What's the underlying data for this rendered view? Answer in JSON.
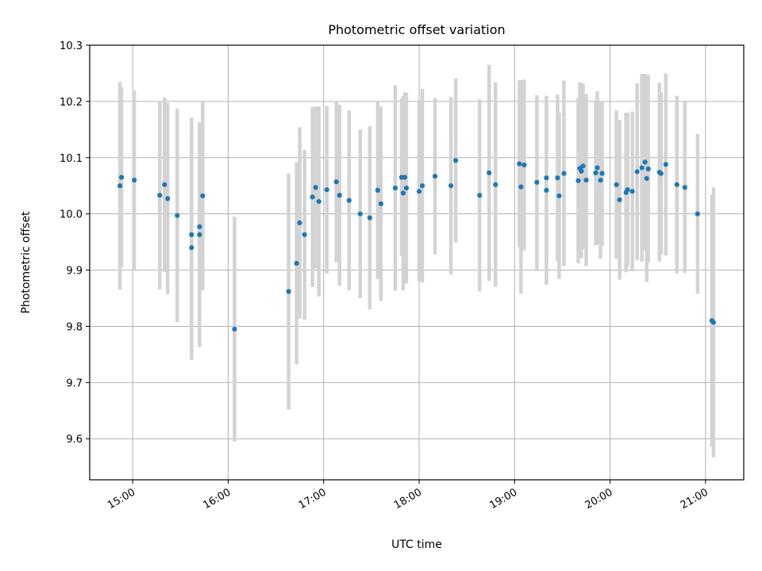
{
  "chart_data": {
    "type": "scatter",
    "title": "Photometric offset variation",
    "xlabel": "UTC time",
    "ylabel": "Photometric offset",
    "x_ticks": [
      "15:00",
      "16:00",
      "17:00",
      "18:00",
      "19:00",
      "20:00",
      "21:00"
    ],
    "y_ticks": [
      "9.6",
      "9.7",
      "9.8",
      "9.9",
      "10.0",
      "10.1",
      "10.2",
      "10.3"
    ],
    "xlim": [
      "14:33",
      "21:24"
    ],
    "ylim": [
      9.527,
      10.3
    ],
    "grid": true,
    "colors": {
      "points": "#1f77b4",
      "errorbars": "#d3d3d3",
      "grid": "#b0b0b0"
    },
    "series": [
      {
        "x": [
          "14:52",
          "14:53",
          "15:01",
          "15:17",
          "15:20",
          "15:22",
          "15:28",
          "15:37",
          "15:37",
          "15:42",
          "15:42",
          "15:44",
          "16:04",
          "16:38",
          "16:43",
          "16:45",
          "16:48",
          "16:53",
          "16:55",
          "16:57",
          "17:02",
          "17:08",
          "17:10",
          "17:16",
          "17:23",
          "17:29",
          "17:34",
          "17:36",
          "17:45",
          "17:49",
          "17:50",
          "17:51",
          "17:52",
          "18:00",
          "18:02",
          "18:10",
          "18:20",
          "18:23",
          "18:38",
          "18:44",
          "18:48",
          "19:03",
          "19:04",
          "19:06",
          "19:14",
          "19:20",
          "19:20",
          "19:27",
          "19:28",
          "19:31",
          "19:40",
          "19:41",
          "19:42",
          "19:43",
          "19:45",
          "19:51",
          "19:52",
          "19:54",
          "19:55",
          "20:04",
          "20:06",
          "20:10",
          "20:11",
          "20:14",
          "20:17",
          "20:20",
          "20:22",
          "20:23",
          "20:24",
          "20:31",
          "20:32",
          "20:35",
          "20:42",
          "20:47",
          "20:55",
          "21:04",
          "21:05"
        ],
        "y": [
          10.05,
          10.065,
          10.06,
          10.033,
          10.052,
          10.027,
          9.997,
          9.963,
          9.94,
          9.977,
          9.963,
          10.032,
          9.795,
          9.862,
          9.912,
          9.984,
          9.963,
          10.03,
          10.047,
          10.022,
          10.043,
          10.057,
          10.033,
          10.024,
          10.0,
          9.993,
          10.042,
          10.018,
          10.046,
          10.065,
          10.037,
          10.065,
          10.046,
          10.04,
          10.05,
          10.067,
          10.05,
          10.095,
          10.033,
          10.073,
          10.052,
          10.089,
          10.048,
          10.087,
          10.056,
          10.042,
          10.064,
          10.064,
          10.032,
          10.072,
          10.059,
          10.081,
          10.076,
          10.085,
          10.06,
          10.073,
          10.082,
          10.06,
          10.072,
          10.052,
          10.025,
          10.038,
          10.043,
          10.04,
          10.075,
          10.082,
          10.092,
          10.063,
          10.08,
          10.074,
          10.072,
          10.088,
          10.052,
          10.047,
          10.0,
          9.81,
          9.807
        ],
        "err": [
          0.185,
          0.16,
          0.16,
          0.167,
          0.155,
          0.17,
          0.19,
          0.208,
          0.2,
          0.16,
          0.2,
          0.168,
          0.2,
          0.21,
          0.18,
          0.17,
          0.151,
          0.16,
          0.144,
          0.169,
          0.149,
          0.143,
          0.161,
          0.16,
          0.15,
          0.163,
          0.158,
          0.173,
          0.183,
          0.14,
          0.173,
          0.151,
          0.17,
          0.16,
          0.172,
          0.139,
          0.158,
          0.146,
          0.171,
          0.192,
          0.182,
          0.148,
          0.19,
          0.152,
          0.155,
          0.168,
          0.146,
          0.148,
          0.148,
          0.165,
          0.147,
          0.153,
          0.155,
          0.147,
          0.153,
          0.129,
          0.136,
          0.14,
          0.129,
          0.132,
          0.142,
          0.142,
          0.137,
          0.142,
          0.157,
          0.167,
          0.157,
          0.184,
          0.167,
          0.159,
          0.144,
          0.162,
          0.158,
          0.152,
          0.142,
          0.224,
          0.24
        ]
      }
    ]
  }
}
